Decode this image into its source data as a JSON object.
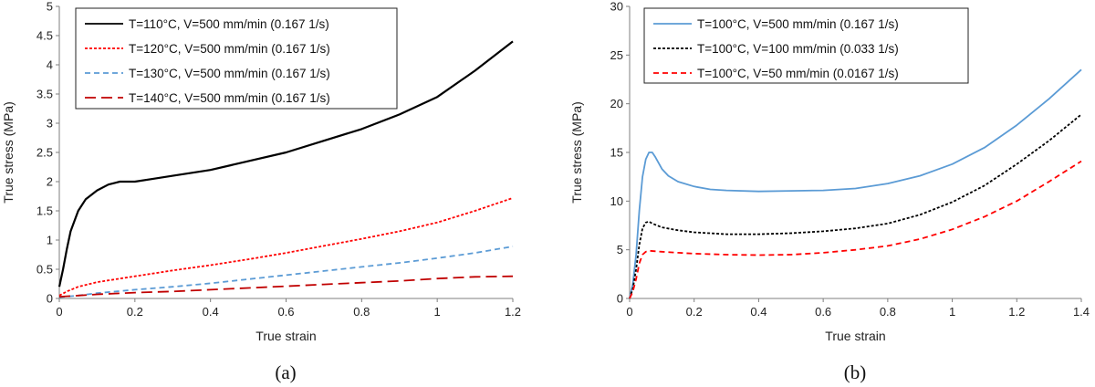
{
  "chart_data": [
    {
      "type": "line",
      "caption": "(a)",
      "xlabel": "True strain",
      "ylabel": "True stress (MPa)",
      "xlim": [
        0,
        1.2
      ],
      "ylim": [
        0,
        5
      ],
      "xticks": [
        "0",
        "0.2",
        "0.4",
        "0.6",
        "0.8",
        "1",
        "1.2"
      ],
      "yticks": [
        "0",
        "0.5",
        "1",
        "1.5",
        "2",
        "2.5",
        "3",
        "3.5",
        "4",
        "4.5",
        "5"
      ],
      "grid": false,
      "legend_position": "top-left",
      "series": [
        {
          "name": "T=110°C, V=500 mm/min (0.167 1/s)",
          "color": "#000000",
          "dash": "solid",
          "x": [
            0,
            0.01,
            0.02,
            0.03,
            0.05,
            0.07,
            0.1,
            0.13,
            0.16,
            0.2,
            0.25,
            0.3,
            0.4,
            0.5,
            0.6,
            0.7,
            0.8,
            0.9,
            1.0,
            1.1,
            1.2
          ],
          "y": [
            0.2,
            0.5,
            0.85,
            1.15,
            1.5,
            1.7,
            1.85,
            1.95,
            2.0,
            2.0,
            2.05,
            2.1,
            2.2,
            2.35,
            2.5,
            2.7,
            2.9,
            3.15,
            3.45,
            3.9,
            4.4
          ]
        },
        {
          "name": "T=120°C, V=500 mm/min (0.167 1/s)",
          "color": "#ff0000",
          "dash": "dotted",
          "x": [
            0,
            0.02,
            0.05,
            0.1,
            0.2,
            0.3,
            0.4,
            0.5,
            0.6,
            0.7,
            0.8,
            0.9,
            1.0,
            1.1,
            1.2
          ],
          "y": [
            0.05,
            0.12,
            0.2,
            0.28,
            0.38,
            0.48,
            0.57,
            0.67,
            0.78,
            0.9,
            1.02,
            1.15,
            1.3,
            1.5,
            1.72
          ]
        },
        {
          "name": "T=130°C, V=500 mm/min (0.167 1/s)",
          "color": "#5b9bd5",
          "dash": "dashed",
          "x": [
            0,
            0.05,
            0.1,
            0.2,
            0.3,
            0.4,
            0.5,
            0.6,
            0.7,
            0.8,
            0.9,
            1.0,
            1.1,
            1.2
          ],
          "y": [
            0.02,
            0.05,
            0.09,
            0.15,
            0.2,
            0.26,
            0.33,
            0.4,
            0.47,
            0.54,
            0.61,
            0.69,
            0.78,
            0.89
          ]
        },
        {
          "name": "T=140°C, V=500 mm/min (0.167 1/s)",
          "color": "#c00000",
          "dash": "longdash",
          "x": [
            0,
            0.05,
            0.1,
            0.2,
            0.3,
            0.4,
            0.5,
            0.6,
            0.7,
            0.8,
            0.9,
            1.0,
            1.1,
            1.2
          ],
          "y": [
            0.03,
            0.05,
            0.07,
            0.1,
            0.12,
            0.15,
            0.18,
            0.21,
            0.24,
            0.27,
            0.3,
            0.34,
            0.37,
            0.38
          ]
        }
      ]
    },
    {
      "type": "line",
      "caption": "(b)",
      "xlabel": "True strain",
      "ylabel": "True stress (MPa)",
      "xlim": [
        0,
        1.4
      ],
      "ylim": [
        0,
        30
      ],
      "xticks": [
        "0",
        "0.2",
        "0.4",
        "0.6",
        "0.8",
        "1",
        "1.2",
        "1.4"
      ],
      "yticks": [
        "0",
        "5",
        "10",
        "15",
        "20",
        "25",
        "30"
      ],
      "grid": false,
      "legend_position": "top-left",
      "series": [
        {
          "name": "T=100°C, V=500 mm/min (0.167 1/s)",
          "color": "#5b9bd5",
          "dash": "solid",
          "x": [
            0,
            0.01,
            0.02,
            0.03,
            0.04,
            0.05,
            0.06,
            0.07,
            0.08,
            0.1,
            0.12,
            0.15,
            0.2,
            0.25,
            0.3,
            0.4,
            0.5,
            0.6,
            0.7,
            0.8,
            0.9,
            1.0,
            1.1,
            1.2,
            1.3,
            1.4
          ],
          "y": [
            0,
            1.5,
            4.5,
            9.0,
            12.5,
            14.3,
            15.0,
            15.0,
            14.5,
            13.3,
            12.6,
            12.0,
            11.5,
            11.2,
            11.1,
            11.0,
            11.05,
            11.1,
            11.3,
            11.8,
            12.6,
            13.8,
            15.5,
            17.8,
            20.5,
            23.5
          ]
        },
        {
          "name": "T=100°C, V=100 mm/min (0.033 1/s)",
          "color": "#000000",
          "dash": "dotted",
          "x": [
            0,
            0.01,
            0.02,
            0.03,
            0.04,
            0.05,
            0.06,
            0.07,
            0.1,
            0.15,
            0.2,
            0.3,
            0.4,
            0.5,
            0.6,
            0.7,
            0.8,
            0.9,
            1.0,
            1.1,
            1.2,
            1.3,
            1.4
          ],
          "y": [
            0,
            1.0,
            3.0,
            5.5,
            7.2,
            7.8,
            7.9,
            7.7,
            7.3,
            7.0,
            6.8,
            6.6,
            6.6,
            6.7,
            6.9,
            7.2,
            7.7,
            8.6,
            9.9,
            11.6,
            13.8,
            16.2,
            18.9
          ]
        },
        {
          "name": "T=100°C, V=50 mm/min (0.0167 1/s)",
          "color": "#ff0000",
          "dash": "dashed",
          "x": [
            0,
            0.01,
            0.02,
            0.03,
            0.04,
            0.05,
            0.06,
            0.08,
            0.1,
            0.15,
            0.2,
            0.3,
            0.4,
            0.5,
            0.6,
            0.7,
            0.8,
            0.9,
            1.0,
            1.1,
            1.2,
            1.3,
            1.4
          ],
          "y": [
            0,
            0.7,
            2.0,
            3.6,
            4.5,
            4.8,
            4.9,
            4.85,
            4.8,
            4.7,
            4.6,
            4.5,
            4.45,
            4.5,
            4.7,
            5.0,
            5.4,
            6.1,
            7.1,
            8.4,
            10.0,
            12.0,
            14.1
          ]
        }
      ]
    }
  ]
}
